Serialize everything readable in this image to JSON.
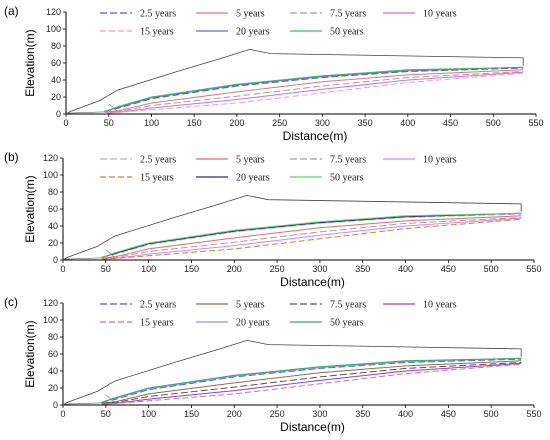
{
  "chart_data": [
    {
      "type": "line",
      "panel_label": "(a)",
      "xlabel": "Distance(m)",
      "ylabel": "Elevation(m)",
      "xlim": [
        0,
        550
      ],
      "ylim": [
        0,
        120
      ],
      "xticks": [
        "0",
        "50",
        "100",
        "150",
        "200",
        "250",
        "300",
        "350",
        "400",
        "450",
        "500",
        "550"
      ],
      "yticks": [
        "0",
        "20",
        "40",
        "60",
        "80",
        "100",
        "120"
      ],
      "legend": {
        "placement": "top",
        "entries": [
          "2.5 years",
          "5 years",
          "7.5 years",
          "10 years",
          "15 years",
          "20 years",
          "50 years"
        ]
      },
      "terrain": {
        "x": [
          0,
          5,
          40,
          60,
          130,
          180,
          215,
          240,
          535,
          535
        ],
        "y": [
          0,
          3,
          16,
          28,
          50,
          65,
          76,
          71,
          66,
          57
        ]
      },
      "series": [
        {
          "name": "2.5 years",
          "color": "#4a5bd6",
          "dash": "7 3",
          "x": [
            45,
            62,
            100,
            200,
            300,
            400,
            535
          ],
          "y": [
            3,
            7,
            18,
            33,
            43,
            50,
            54
          ]
        },
        {
          "name": "5 years",
          "color": "#e07676",
          "dash": "",
          "x": [
            45,
            62,
            100,
            200,
            300,
            400,
            535
          ],
          "y": [
            2,
            4,
            13,
            26,
            38,
            46,
            52
          ]
        },
        {
          "name": "7.5 years",
          "color": "#9aa0aa",
          "dash": "7 3",
          "x": [
            45,
            62,
            100,
            200,
            300,
            400,
            535
          ],
          "y": [
            2,
            3,
            10,
            21,
            33,
            43,
            50
          ]
        },
        {
          "name": "10 years",
          "color": "#d070d0",
          "dash": "",
          "x": [
            45,
            62,
            100,
            200,
            300,
            400,
            535
          ],
          "y": [
            1,
            2,
            7,
            17,
            29,
            40,
            49
          ]
        },
        {
          "name": "15 years",
          "color": "#f0a0b0",
          "dash": "6 3",
          "x": [
            45,
            62,
            100,
            200,
            300,
            400,
            535
          ],
          "y": [
            1,
            2,
            5,
            13,
            25,
            37,
            48
          ]
        },
        {
          "name": "20 years",
          "color": "#6a6ac8",
          "dash": "",
          "x": [
            45,
            62,
            100,
            200,
            300,
            400,
            535
          ],
          "y": [
            3,
            8,
            19,
            34,
            44,
            51,
            55
          ]
        },
        {
          "name": "50 years",
          "color": "#44bb55",
          "dash": "",
          "x": [
            45,
            62,
            100,
            200,
            300,
            400,
            535
          ],
          "y": [
            3,
            9,
            20,
            35,
            45,
            52,
            55
          ]
        }
      ]
    },
    {
      "type": "line",
      "panel_label": "(b)",
      "xlabel": "Distance(m)",
      "ylabel": "Elevation(m)",
      "xlim": [
        0,
        550
      ],
      "ylim": [
        0,
        120
      ],
      "xticks": [
        "0",
        "50",
        "100",
        "150",
        "200",
        "250",
        "300",
        "350",
        "400",
        "450",
        "500",
        "550"
      ],
      "yticks": [
        "0",
        "20",
        "40",
        "60",
        "80",
        "100",
        "120"
      ],
      "legend": {
        "placement": "top",
        "entries": [
          "2.5 years",
          "5 years",
          "7.5 years",
          "10 years",
          "15 years",
          "20 years",
          "50 years"
        ]
      },
      "terrain": {
        "x": [
          0,
          5,
          40,
          60,
          130,
          180,
          215,
          240,
          535,
          535
        ],
        "y": [
          0,
          3,
          16,
          28,
          50,
          65,
          76,
          71,
          66,
          57
        ]
      },
      "series": [
        {
          "name": "2.5 years",
          "color": "#a8b4e8",
          "dash": "7 3",
          "x": [
            45,
            62,
            100,
            200,
            300,
            400,
            535
          ],
          "y": [
            3,
            7,
            18,
            33,
            43,
            50,
            54
          ]
        },
        {
          "name": "5 years",
          "color": "#e86a6a",
          "dash": "",
          "x": [
            45,
            62,
            100,
            200,
            300,
            400,
            535
          ],
          "y": [
            2,
            4,
            13,
            26,
            38,
            46,
            52
          ]
        },
        {
          "name": "7.5 years",
          "color": "#9aa0aa",
          "dash": "7 3",
          "x": [
            45,
            62,
            100,
            200,
            300,
            400,
            535
          ],
          "y": [
            2,
            3,
            10,
            21,
            33,
            43,
            50
          ]
        },
        {
          "name": "10 years",
          "color": "#e880e0",
          "dash": "",
          "x": [
            45,
            62,
            100,
            200,
            300,
            400,
            535
          ],
          "y": [
            1,
            2,
            7,
            17,
            29,
            40,
            49
          ]
        },
        {
          "name": "15 years",
          "color": "#c8803a",
          "dash": "6 3",
          "x": [
            45,
            62,
            100,
            200,
            300,
            400,
            535
          ],
          "y": [
            1,
            2,
            5,
            13,
            25,
            37,
            48
          ]
        },
        {
          "name": "20 years",
          "color": "#2a2a7a",
          "dash": "",
          "x": [
            45,
            62,
            100,
            200,
            300,
            400,
            535
          ],
          "y": [
            3,
            8,
            19,
            34,
            44,
            51,
            55
          ]
        },
        {
          "name": "50 years",
          "color": "#66cc66",
          "dash": "",
          "x": [
            45,
            62,
            100,
            200,
            300,
            400,
            535
          ],
          "y": [
            3,
            9,
            20,
            35,
            45,
            52,
            55
          ]
        }
      ]
    },
    {
      "type": "line",
      "panel_label": "(c)",
      "xlabel": "Distance(m)",
      "ylabel": "Elevation(m)",
      "xlim": [
        0,
        550
      ],
      "ylim": [
        0,
        120
      ],
      "xticks": [
        "0",
        "50",
        "100",
        "150",
        "200",
        "250",
        "300",
        "350",
        "400",
        "450",
        "500",
        "550"
      ],
      "yticks": [
        "0",
        "20",
        "40",
        "60",
        "80",
        "100",
        "120"
      ],
      "legend": {
        "placement": "top",
        "entries": [
          "2.5 years",
          "5 years",
          "7.5 years",
          "10 years",
          "15 years",
          "20 years",
          "50 years"
        ]
      },
      "terrain": {
        "x": [
          0,
          5,
          40,
          60,
          130,
          180,
          215,
          240,
          535,
          535
        ],
        "y": [
          0,
          3,
          16,
          28,
          50,
          65,
          76,
          71,
          66,
          57
        ]
      },
      "series": [
        {
          "name": "2.5 years",
          "color": "#4a5bd6",
          "dash": "7 3",
          "x": [
            45,
            62,
            100,
            200,
            300,
            400,
            535
          ],
          "y": [
            3,
            7,
            18,
            33,
            43,
            50,
            54
          ]
        },
        {
          "name": "5 years",
          "color": "#9a6a4a",
          "dash": "",
          "x": [
            45,
            62,
            100,
            200,
            300,
            400,
            535
          ],
          "y": [
            2,
            4,
            13,
            26,
            38,
            46,
            52
          ]
        },
        {
          "name": "7.5 years",
          "color": "#555555",
          "dash": "7 3",
          "x": [
            45,
            62,
            100,
            200,
            300,
            400,
            535
          ],
          "y": [
            2,
            3,
            10,
            21,
            33,
            43,
            50
          ]
        },
        {
          "name": "10 years",
          "color": "#9a3ad6",
          "dash": "",
          "x": [
            45,
            62,
            100,
            200,
            300,
            400,
            535
          ],
          "y": [
            1,
            2,
            7,
            17,
            29,
            40,
            49
          ]
        },
        {
          "name": "15 years",
          "color": "#d070a0",
          "dash": "6 3",
          "x": [
            45,
            62,
            100,
            200,
            300,
            400,
            535
          ],
          "y": [
            1,
            2,
            5,
            13,
            25,
            37,
            48
          ]
        },
        {
          "name": "20 years",
          "color": "#8a9ad6",
          "dash": "",
          "x": [
            45,
            62,
            100,
            200,
            300,
            400,
            535
          ],
          "y": [
            3,
            8,
            19,
            34,
            44,
            51,
            55
          ]
        },
        {
          "name": "50 years",
          "color": "#33aa66",
          "dash": "",
          "x": [
            45,
            62,
            100,
            200,
            300,
            400,
            535
          ],
          "y": [
            3,
            9,
            20,
            35,
            45,
            52,
            55
          ]
        }
      ]
    }
  ]
}
